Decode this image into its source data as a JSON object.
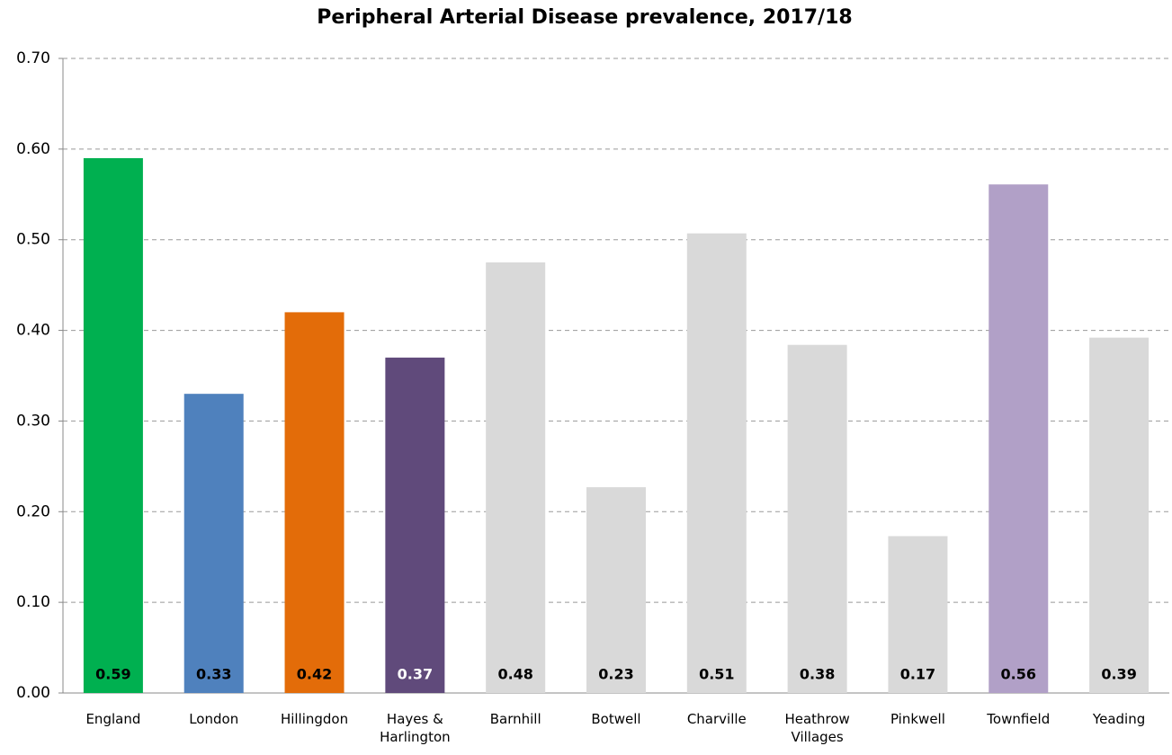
{
  "chart_data": {
    "type": "bar",
    "title": "Peripheral Arterial Disease prevalence, 2017/18",
    "categories": [
      "England",
      "London",
      "Hillingdon",
      "Hayes & Harlington",
      "Barnhill",
      "Botwell",
      "Charville",
      "Heathrow Villages",
      "Pinkwell",
      "Townfield",
      "Yeading"
    ],
    "values": [
      0.59,
      0.33,
      0.42,
      0.37,
      0.475,
      0.227,
      0.507,
      0.384,
      0.173,
      0.561,
      0.392
    ],
    "value_labels": [
      "0.59",
      "0.33",
      "0.42",
      "0.37",
      "0.48",
      "0.23",
      "0.51",
      "0.38",
      "0.17",
      "0.56",
      "0.39"
    ],
    "colors": [
      "#00b050",
      "#4f81bd",
      "#e36c09",
      "#604a7b",
      "#d9d9d9",
      "#d9d9d9",
      "#d9d9d9",
      "#d9d9d9",
      "#d9d9d9",
      "#b1a0c7",
      "#d9d9d9"
    ],
    "value_label_colors": [
      "#000000",
      "#000000",
      "#000000",
      "#ffffff",
      "#000000",
      "#000000",
      "#000000",
      "#000000",
      "#000000",
      "#000000",
      "#000000"
    ],
    "ylim": [
      0,
      0.7
    ],
    "yticks": [
      {
        "value": 0,
        "label": "0.00"
      },
      {
        "value": 0.1,
        "label": "0.10"
      },
      {
        "value": 0.2,
        "label": "0.20"
      },
      {
        "value": 0.3,
        "label": "0.30"
      },
      {
        "value": 0.4,
        "label": "0.40"
      },
      {
        "value": 0.5,
        "label": "0.50"
      },
      {
        "value": 0.6,
        "label": "0.60"
      },
      {
        "value": 0.7,
        "label": "0.70"
      }
    ],
    "grid": true
  }
}
